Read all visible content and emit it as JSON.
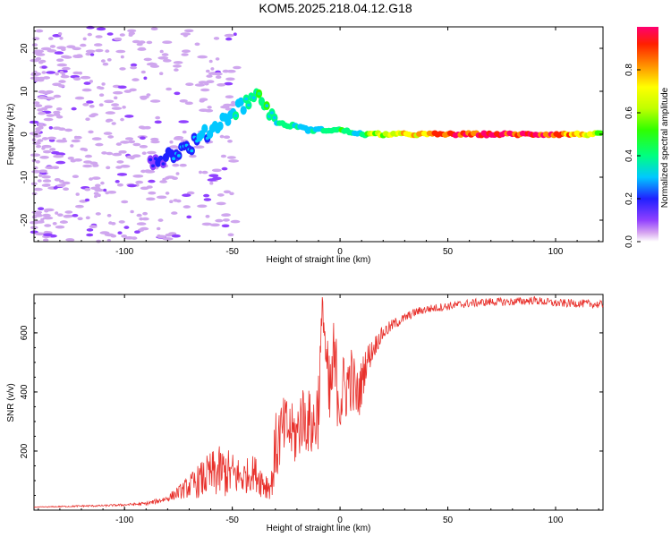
{
  "title": "KOM5.2025.218.04.12.G18",
  "chart_data": [
    {
      "type": "heatmap",
      "name": "spectrogram",
      "xlabel": "Height of straight line (km)",
      "ylabel": "Frequency (Hz)",
      "xlim": [
        -142,
        122
      ],
      "ylim": [
        -25,
        25
      ],
      "xticks": [
        -100,
        -50,
        0,
        50,
        100
      ],
      "yticks": [
        -20,
        -10,
        0,
        10,
        20
      ],
      "ridge": {
        "x": [
          -85,
          -80,
          -75,
          -70,
          -65,
          -60,
          -55,
          -50,
          -45,
          -40,
          -36,
          -30,
          -25,
          -20,
          -15,
          -10,
          -5,
          0,
          5,
          10,
          15,
          20,
          30,
          40,
          50,
          60,
          70,
          80,
          90,
          100,
          110,
          122
        ],
        "y": [
          -6,
          -5,
          -4,
          -3,
          -1,
          1,
          3,
          5,
          7,
          9,
          8,
          3,
          2,
          2,
          1,
          1,
          1,
          1,
          0.5,
          0,
          0,
          0,
          0,
          0,
          0,
          0,
          0,
          0,
          0,
          0,
          0,
          0
        ],
        "amplitude": [
          0.1,
          0.1,
          0.15,
          0.15,
          0.2,
          0.2,
          0.25,
          0.25,
          0.3,
          0.35,
          0.4,
          0.3,
          0.3,
          0.3,
          0.25,
          0.3,
          0.3,
          0.4,
          0.35,
          0.3,
          0.6,
          0.6,
          0.65,
          0.75,
          0.85,
          0.9,
          0.95,
          0.9,
          0.85,
          0.8,
          0.7,
          0.45
        ]
      },
      "colorbar": {
        "label": "Normalized spectral amplitude",
        "range": [
          0,
          1
        ],
        "ticks": [
          "0.0",
          "0.2",
          "0.4",
          "0.6",
          "0.8"
        ]
      }
    },
    {
      "type": "line",
      "name": "snr",
      "xlabel": "Height of straight line (km)",
      "ylabel": "SNR (v/v)",
      "xlim": [
        -142,
        122
      ],
      "ylim": [
        0,
        730
      ],
      "xticks": [
        -100,
        -50,
        0,
        50,
        100
      ],
      "yticks": [
        200,
        400,
        600
      ],
      "color": "#e8312c",
      "series": [
        {
          "name": "SNR",
          "x": [
            -142,
            -130,
            -120,
            -110,
            -100,
            -90,
            -85,
            -80,
            -75,
            -70,
            -65,
            -60,
            -55,
            -50,
            -45,
            -40,
            -35,
            -32,
            -30,
            -28,
            -25,
            -22,
            -20,
            -18,
            -15,
            -12,
            -10,
            -8,
            -6,
            -5,
            -3,
            0,
            3,
            5,
            8,
            10,
            12,
            15,
            18,
            20,
            25,
            30,
            35,
            40,
            50,
            60,
            70,
            80,
            90,
            100,
            110,
            122
          ],
          "y": [
            10,
            12,
            14,
            15,
            18,
            22,
            30,
            40,
            60,
            80,
            100,
            120,
            130,
            120,
            110,
            130,
            90,
            80,
            200,
            250,
            280,
            260,
            250,
            320,
            300,
            280,
            360,
            700,
            450,
            350,
            500,
            380,
            420,
            450,
            380,
            430,
            500,
            540,
            580,
            600,
            630,
            650,
            670,
            680,
            690,
            700,
            705,
            705,
            710,
            700,
            700,
            695
          ],
          "noise": [
            1,
            2,
            3,
            3,
            4,
            6,
            8,
            12,
            22,
            40,
            60,
            80,
            90,
            80,
            60,
            60,
            60,
            40,
            130,
            120,
            110,
            100,
            120,
            120,
            110,
            130,
            150,
            60,
            150,
            180,
            150,
            150,
            120,
            120,
            100,
            80,
            60,
            40,
            30,
            25,
            20,
            16,
            15,
            14,
            14,
            14,
            14,
            14,
            14,
            14,
            14,
            14
          ]
        }
      ]
    }
  ]
}
